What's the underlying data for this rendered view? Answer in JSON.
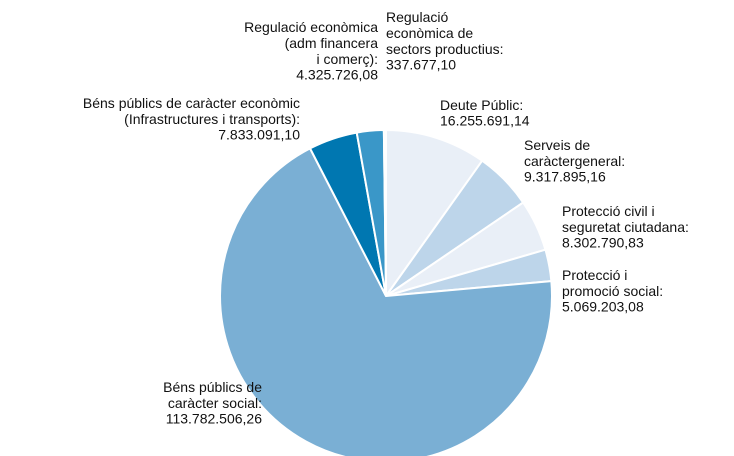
{
  "chart_data": {
    "type": "pie",
    "categories": [
      "Deute Públic:",
      "Serveis de\ncaràctergeneral:",
      "Protecció civil i\nseguretat ciutadana:",
      "Protecció i\npromoció social:",
      "Béns públics de\ncaràcter social:",
      "Béns públics de caràcter econòmic\n(Infrastructures i transports):",
      "Regulació econòmica\n(adm financera\ni comerç):",
      "Regulació\neconòmica de\nsectors productius:"
    ],
    "values": [
      16255691.14,
      9317895.16,
      8302790.83,
      5069203.08,
      113782506.26,
      7833091.1,
      4325726.08,
      337677.1
    ],
    "value_labels": [
      "16.255.691,14",
      "9.317.895,16",
      "8.302.790,83",
      "5.069.203,08",
      "113.782.506,26",
      "7.833.091,10",
      "4.325.726,08",
      "337.677,10"
    ],
    "colors": [
      "#e9eff7",
      "#bdd5ea",
      "#e9eff7",
      "#bdd5ea",
      "#7aafd4",
      "#0077b1",
      "#3a97c8",
      "#e9eff7"
    ]
  }
}
